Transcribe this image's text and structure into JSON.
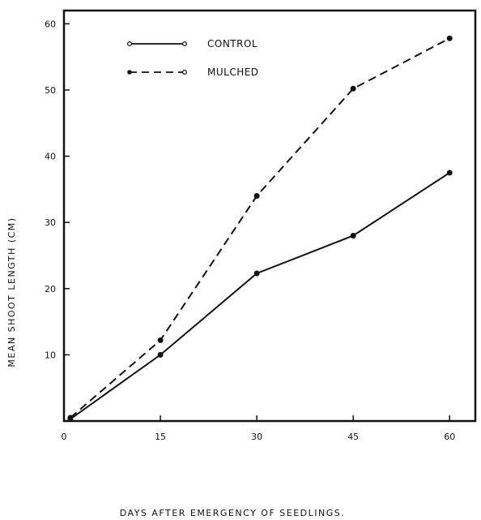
{
  "chart_data": {
    "type": "line",
    "title": "",
    "xlabel": "DAYS   AFTER  EMERGENCY OF SEEDLINGS.",
    "ylabel": "MEAN SHOOT  LENGTH  (CM)",
    "x": [
      1,
      15,
      30,
      45,
      60
    ],
    "x_ticks": [
      0,
      15,
      30,
      45,
      60
    ],
    "y_ticks": [
      10,
      20,
      30,
      40,
      50,
      60
    ],
    "x_tick_labels": [
      "0",
      "15",
      "30",
      "45",
      "60"
    ],
    "y_tick_labels": [
      "10",
      "20",
      "30",
      "40",
      "50",
      "60"
    ],
    "xlim": [
      0,
      64
    ],
    "ylim": [
      0,
      62
    ],
    "grid": false,
    "legend_position": "top-left",
    "series": [
      {
        "name": "CONTROL",
        "style": "solid",
        "values": [
          0.3,
          10,
          22.3,
          28,
          37.5
        ]
      },
      {
        "name": "MULCHED",
        "style": "dashed",
        "values": [
          0.5,
          12.2,
          34,
          50.2,
          57.8
        ]
      }
    ],
    "colors": {
      "line": "#111111",
      "background": "#ffffff"
    }
  }
}
